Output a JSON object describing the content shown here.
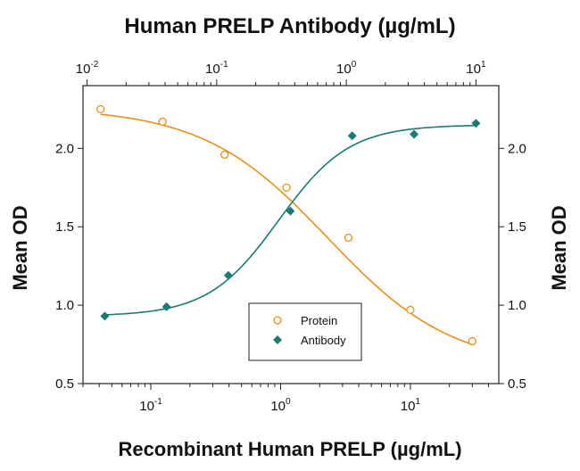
{
  "chart_data": {
    "type": "scatter",
    "title": "Human PRELP Antibody (µg/mL)",
    "xlabel": "Recombinant Human PRELP (µg/mL)",
    "ylabel": "Mean OD",
    "y2label": "Mean OD",
    "ylim": [
      0.5,
      2.4
    ],
    "yticks": [
      0.5,
      1.0,
      1.5,
      2.0
    ],
    "ytick_labels": [
      "0.5",
      "1.0",
      "1.5",
      "2.0"
    ],
    "x_scale": "log",
    "xlim": [
      0.03,
      48
    ],
    "xticks": [
      {
        "base": "10",
        "exp": "-1",
        "value": 0.1
      },
      {
        "base": "10",
        "exp": "0",
        "value": 1
      },
      {
        "base": "10",
        "exp": "1",
        "value": 10
      }
    ],
    "top_axis": {
      "scale": "log",
      "xlim": [
        0.0093,
        15
      ],
      "ticks": [
        {
          "base": "10",
          "exp": "-2",
          "value": 0.01
        },
        {
          "base": "10",
          "exp": "-1",
          "value": 0.1
        },
        {
          "base": "10",
          "exp": "0",
          "value": 1
        },
        {
          "base": "10",
          "exp": "1",
          "value": 10
        }
      ]
    },
    "grid": false,
    "legend_position": "bottom-center",
    "series": [
      {
        "name": "Protein",
        "axis": "bottom",
        "marker": "open-circle",
        "color": "#E8901C",
        "x": [
          0.041,
          0.123,
          0.37,
          1.11,
          3.33,
          10,
          30
        ],
        "y": [
          2.25,
          2.17,
          1.96,
          1.75,
          1.43,
          0.97,
          0.77
        ],
        "fit": {
          "bottom": 0.6,
          "top": 2.26,
          "ec50": 2.3,
          "hill": 0.9
        }
      },
      {
        "name": "Antibody",
        "axis": "top",
        "marker": "filled-diamond",
        "color": "#1B7B74",
        "x": [
          0.0137,
          0.041,
          0.123,
          0.37,
          1.11,
          3.33,
          10
        ],
        "y": [
          0.93,
          0.99,
          1.19,
          1.6,
          2.08,
          2.09,
          2.16
        ],
        "fit": {
          "bottom": 0.93,
          "top": 2.15,
          "ec50": 0.3,
          "hill": 1.6
        }
      }
    ]
  }
}
